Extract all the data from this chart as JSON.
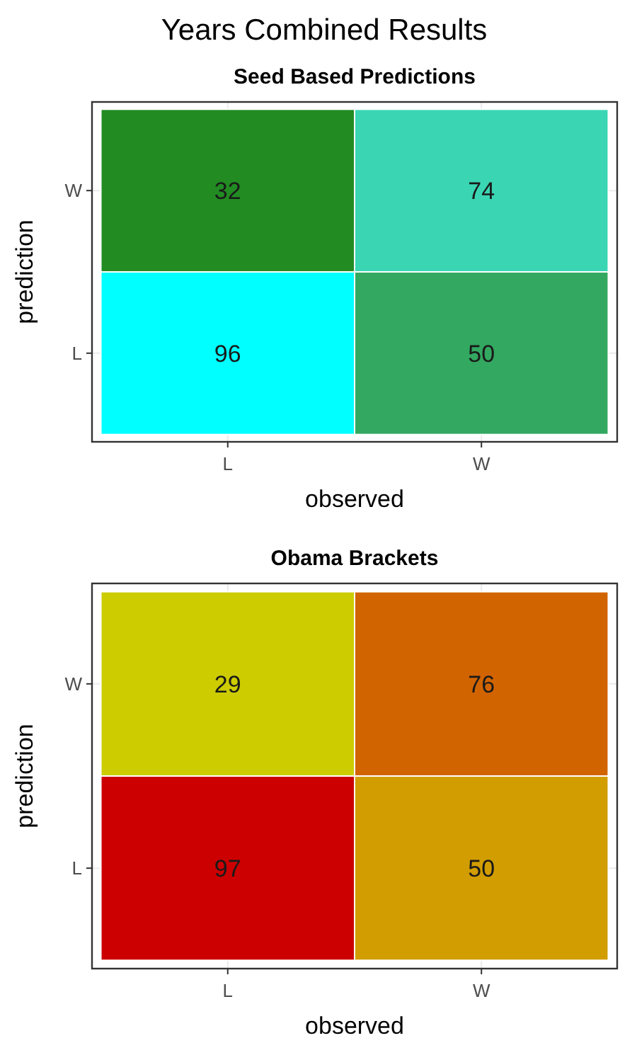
{
  "chart_data": [
    {
      "type": "heatmap",
      "title": "Years Combined Results",
      "subtitle": "Seed Based Predictions",
      "xlabel": "observed",
      "ylabel": "prediction",
      "categories": [
        "L",
        "W"
      ],
      "y_categories": [
        "W",
        "L"
      ],
      "cells": [
        [
          32,
          74
        ],
        [
          96,
          50
        ]
      ],
      "colors": [
        [
          "#228b22",
          "#3ad6b4"
        ],
        [
          "#00ffff",
          "#33a860"
        ]
      ],
      "data_labels": true,
      "grid": true
    },
    {
      "type": "heatmap",
      "title": "Obama Brackets",
      "xlabel": "observed",
      "ylabel": "prediction",
      "categories": [
        "L",
        "W"
      ],
      "y_categories": [
        "W",
        "L"
      ],
      "cells": [
        [
          29,
          76
        ],
        [
          97,
          50
        ]
      ],
      "colors": [
        [
          "#cccc00",
          "#d26400"
        ],
        [
          "#cc0000",
          "#d29d00"
        ]
      ],
      "data_labels": true,
      "grid": true
    }
  ]
}
